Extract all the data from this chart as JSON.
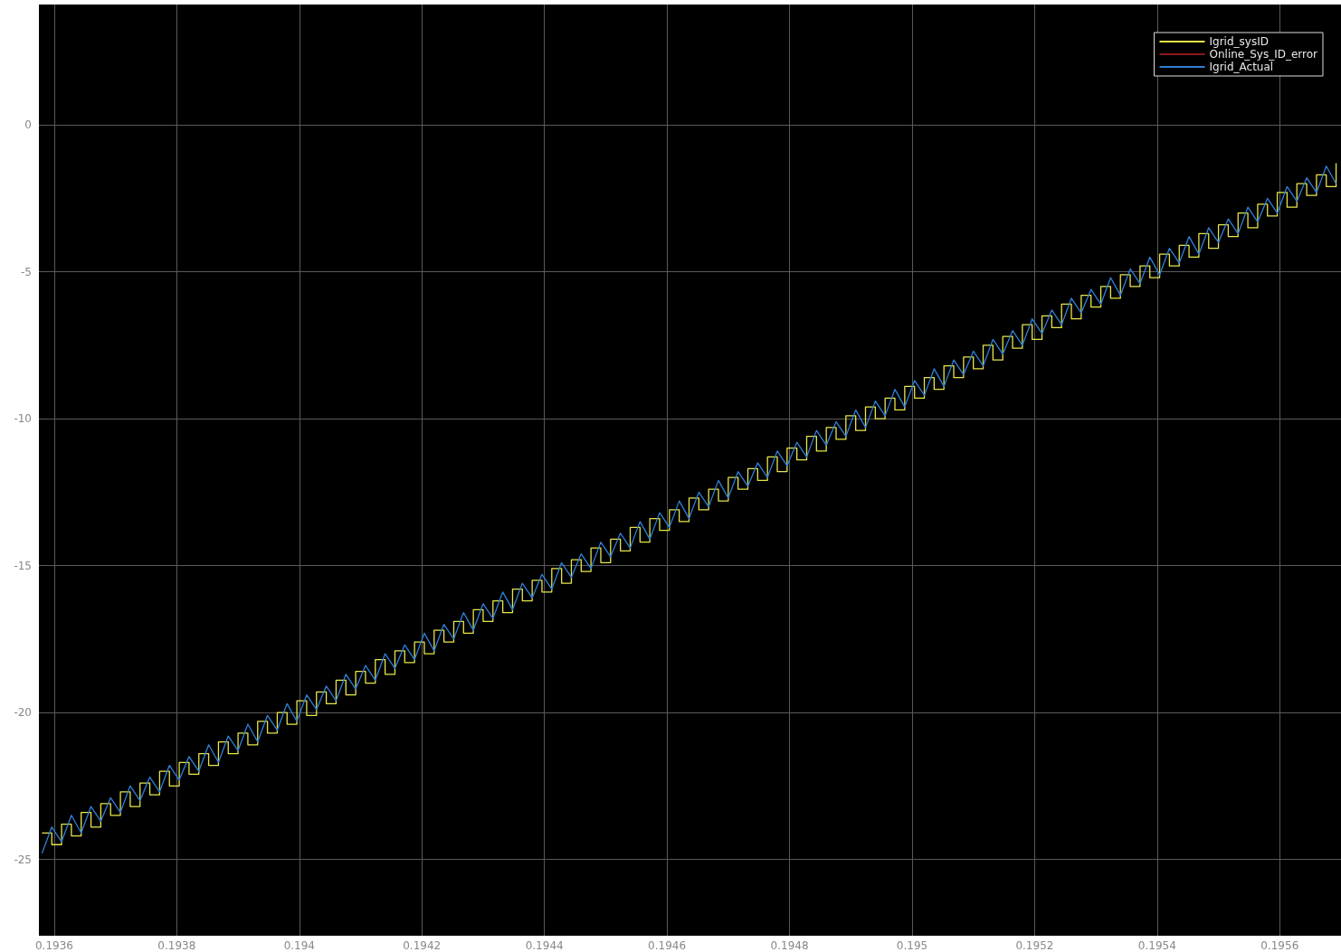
{
  "chart_data": {
    "type": "line",
    "x": [
      0.19358,
      0.193596,
      0.193612,
      0.193628,
      0.193644,
      0.19366,
      0.193676,
      0.193692,
      0.193708,
      0.193724,
      0.19374,
      0.193756,
      0.193772,
      0.193788,
      0.193804,
      0.19382,
      0.193836,
      0.193852,
      0.193868,
      0.193884,
      0.1939,
      0.193916,
      0.193932,
      0.193948,
      0.193964,
      0.19398,
      0.193996,
      0.194012,
      0.194028,
      0.194044,
      0.19406,
      0.194076,
      0.194092,
      0.194108,
      0.194124,
      0.19414,
      0.194156,
      0.194172,
      0.194188,
      0.194204,
      0.19422,
      0.194236,
      0.194252,
      0.194268,
      0.194284,
      0.1943,
      0.194316,
      0.194332,
      0.194348,
      0.194364,
      0.19438,
      0.194396,
      0.194412,
      0.194428,
      0.194444,
      0.19446,
      0.194476,
      0.194492,
      0.194508,
      0.194524,
      0.19454,
      0.194556,
      0.194572,
      0.194588,
      0.194604,
      0.19462,
      0.194636,
      0.194652,
      0.194668,
      0.194684,
      0.1947,
      0.194716,
      0.194732,
      0.194748,
      0.194764,
      0.19478,
      0.194796,
      0.194812,
      0.194828,
      0.194844,
      0.19486,
      0.194876,
      0.194892,
      0.194908,
      0.194924,
      0.19494,
      0.194956,
      0.194972,
      0.194988,
      0.195004,
      0.19502,
      0.195036,
      0.195052,
      0.195068,
      0.195084,
      0.1951,
      0.195116,
      0.195132,
      0.195148,
      0.195164,
      0.19518,
      0.195196,
      0.195212,
      0.195228,
      0.195244,
      0.19526,
      0.195276,
      0.195292,
      0.195308,
      0.195324,
      0.19534,
      0.195356,
      0.195372,
      0.195388,
      0.195404,
      0.19542,
      0.195436,
      0.195452,
      0.195468,
      0.195484,
      0.1955,
      0.195516,
      0.195532,
      0.195548,
      0.195564,
      0.19558,
      0.195596,
      0.195612,
      0.195628,
      0.195644,
      0.19566,
      0.195676,
      0.195692
    ],
    "series": [
      {
        "name": "Igrid_sysID",
        "type": "step",
        "color": "#e6e64c",
        "values": [
          -24.1,
          -24.5,
          -23.8,
          -24.2,
          -23.4,
          -23.9,
          -23.1,
          -23.5,
          -22.7,
          -23.2,
          -22.4,
          -22.8,
          -22.0,
          -22.5,
          -21.7,
          -22.1,
          -21.4,
          -21.8,
          -21.0,
          -21.4,
          -20.7,
          -21.1,
          -20.3,
          -20.7,
          -20.0,
          -20.4,
          -19.6,
          -20.1,
          -19.3,
          -19.7,
          -18.9,
          -19.4,
          -18.6,
          -19.0,
          -18.2,
          -18.7,
          -17.9,
          -18.3,
          -17.6,
          -18.0,
          -17.2,
          -17.6,
          -16.9,
          -17.3,
          -16.5,
          -16.9,
          -16.2,
          -16.6,
          -15.8,
          -16.2,
          -15.5,
          -15.9,
          -15.1,
          -15.6,
          -14.8,
          -15.2,
          -14.4,
          -14.9,
          -14.1,
          -14.5,
          -13.7,
          -14.2,
          -13.4,
          -13.8,
          -13.1,
          -13.5,
          -12.7,
          -13.1,
          -12.4,
          -12.8,
          -12.0,
          -12.4,
          -11.7,
          -12.1,
          -11.3,
          -11.8,
          -11.0,
          -11.4,
          -10.6,
          -11.1,
          -10.3,
          -10.7,
          -9.9,
          -10.4,
          -9.6,
          -10.0,
          -9.3,
          -9.7,
          -8.9,
          -9.3,
          -8.6,
          -9.0,
          -8.2,
          -8.6,
          -7.9,
          -8.3,
          -7.5,
          -8.0,
          -7.2,
          -7.6,
          -6.8,
          -7.3,
          -6.5,
          -6.9,
          -6.1,
          -6.6,
          -5.8,
          -6.2,
          -5.5,
          -5.9,
          -5.1,
          -5.5,
          -4.8,
          -5.2,
          -4.4,
          -4.8,
          -4.1,
          -4.5,
          -3.7,
          -4.2,
          -3.4,
          -3.8,
          -3.0,
          -3.5,
          -2.7,
          -3.1,
          -2.3,
          -2.8,
          -2.0,
          -2.4,
          -1.7,
          -2.1,
          -1.3
        ]
      },
      {
        "name": "Online_Sys_ID_error",
        "color": "#8b1a1a",
        "values": [
          null,
          null,
          null,
          null,
          null,
          null,
          null,
          null,
          null,
          null,
          null,
          null,
          null,
          null,
          null,
          null,
          null,
          null,
          null,
          null,
          null,
          null,
          null,
          null,
          null,
          null,
          null,
          null,
          null,
          null,
          null,
          null,
          null,
          null,
          null,
          null,
          null,
          null,
          null,
          null,
          null,
          null,
          null,
          null,
          null,
          null,
          null,
          null,
          null,
          null,
          null,
          null,
          null,
          null,
          null,
          null,
          null,
          null,
          null,
          null,
          null,
          null,
          null,
          null,
          null,
          null,
          null,
          null,
          null,
          null,
          null,
          null,
          null,
          null,
          null,
          null,
          null,
          null,
          null,
          null,
          null,
          null,
          null,
          null,
          null,
          null,
          null,
          null,
          null,
          null,
          null,
          null,
          null,
          null,
          null,
          null,
          null,
          null,
          null,
          null,
          null,
          null,
          null,
          null,
          null,
          null,
          null,
          null,
          null,
          null,
          null,
          null,
          null,
          null,
          null,
          null,
          null,
          null,
          null,
          null,
          null,
          null,
          null,
          null,
          null,
          null,
          null,
          null,
          null,
          null,
          null,
          null,
          null
        ]
      },
      {
        "name": "Igrid_Actual",
        "color": "#2f7fd6",
        "values": [
          -24.8,
          -23.9,
          -24.4,
          -23.5,
          -24.1,
          -23.2,
          -23.7,
          -22.9,
          -23.4,
          -22.5,
          -23.0,
          -22.2,
          -22.7,
          -21.8,
          -22.3,
          -21.5,
          -22.0,
          -21.1,
          -21.7,
          -20.8,
          -21.3,
          -20.4,
          -21.0,
          -20.1,
          -20.6,
          -19.7,
          -20.3,
          -19.4,
          -19.9,
          -19.1,
          -19.6,
          -18.7,
          -19.2,
          -18.4,
          -18.9,
          -18.0,
          -18.5,
          -17.7,
          -18.2,
          -17.3,
          -17.9,
          -17.0,
          -17.5,
          -16.6,
          -17.2,
          -16.3,
          -16.8,
          -15.9,
          -16.5,
          -15.6,
          -16.1,
          -15.3,
          -15.8,
          -14.9,
          -15.4,
          -14.6,
          -15.1,
          -14.2,
          -14.7,
          -13.9,
          -14.4,
          -13.5,
          -14.1,
          -13.2,
          -13.7,
          -12.8,
          -13.4,
          -12.5,
          -13.0,
          -12.1,
          -12.7,
          -11.8,
          -12.3,
          -11.5,
          -12.0,
          -11.1,
          -11.6,
          -10.8,
          -11.3,
          -10.4,
          -10.9,
          -10.1,
          -10.6,
          -9.7,
          -10.3,
          -9.4,
          -9.9,
          -9.0,
          -9.6,
          -8.7,
          -9.2,
          -8.3,
          -8.9,
          -8.0,
          -8.5,
          -7.7,
          -8.2,
          -7.3,
          -7.8,
          -7.0,
          -7.5,
          -6.6,
          -7.1,
          -6.3,
          -6.8,
          -5.9,
          -6.4,
          -5.6,
          -6.1,
          -5.2,
          -5.8,
          -4.9,
          -5.4,
          -4.5,
          -5.1,
          -4.2,
          -4.7,
          -3.8,
          -4.4,
          -3.5,
          -4.0,
          -3.2,
          -3.7,
          -2.8,
          -3.3,
          -2.5,
          -3.0,
          -2.1,
          -2.6,
          -1.8,
          -2.3,
          -1.4,
          -2.0
        ]
      }
    ],
    "xlim": [
      0.193575,
      0.1957
    ],
    "ylim": [
      -27.6,
      4.1
    ],
    "xticks": [
      0.1936,
      0.1938,
      0.194,
      0.1942,
      0.1944,
      0.1946,
      0.1948,
      0.195,
      0.1952,
      0.1954,
      0.1956
    ],
    "yticks": [
      -25,
      -20,
      -15,
      -10,
      -5,
      0
    ],
    "grid": true,
    "legend": "top right",
    "marker": "none",
    "line_style": "solid"
  }
}
